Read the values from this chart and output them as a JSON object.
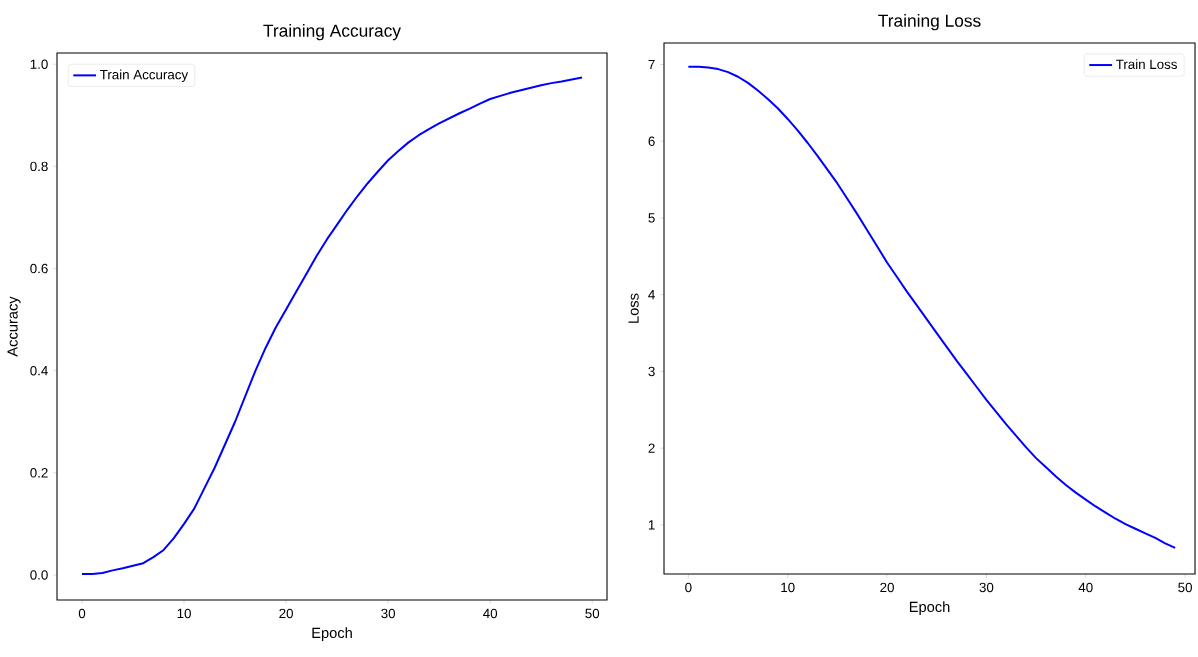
{
  "chart_data": [
    {
      "type": "line",
      "title": "Training Accuracy",
      "xlabel": "Epoch",
      "ylabel": "Accuracy",
      "x": [
        0,
        1,
        2,
        3,
        4,
        5,
        6,
        7,
        8,
        9,
        10,
        11,
        12,
        13,
        14,
        15,
        16,
        17,
        18,
        19,
        20,
        21,
        22,
        23,
        24,
        25,
        26,
        27,
        28,
        29,
        30,
        31,
        32,
        33,
        34,
        35,
        36,
        37,
        38,
        39,
        40,
        41,
        42,
        43,
        44,
        45,
        46,
        47,
        48,
        49
      ],
      "series": [
        {
          "name": "Train Accuracy",
          "color": "#0000ff",
          "values": [
            0.002,
            0.002,
            0.004,
            0.009,
            0.013,
            0.018,
            0.023,
            0.035,
            0.049,
            0.072,
            0.1,
            0.13,
            0.17,
            0.21,
            0.255,
            0.3,
            0.35,
            0.4,
            0.445,
            0.485,
            0.52,
            0.555,
            0.59,
            0.625,
            0.657,
            0.686,
            0.715,
            0.742,
            0.767,
            0.79,
            0.812,
            0.83,
            0.847,
            0.861,
            0.873,
            0.884,
            0.894,
            0.904,
            0.913,
            0.923,
            0.932,
            0.938,
            0.944,
            0.949,
            0.954,
            0.959,
            0.963,
            0.966,
            0.97,
            0.974
          ]
        }
      ],
      "xlim": [
        -2.45,
        51.45
      ],
      "ylim": [
        -0.049,
        1.022
      ],
      "xticks": [
        0,
        10,
        20,
        30,
        40,
        50
      ],
      "yticks": [
        {
          "value": 0,
          "label": "0.0"
        },
        {
          "value": 0.2,
          "label": "0.2"
        },
        {
          "value": 0.4,
          "label": "0.4"
        },
        {
          "value": 0.6,
          "label": "0.6"
        },
        {
          "value": 0.8,
          "label": "0.8"
        },
        {
          "value": 1,
          "label": "1.0"
        }
      ],
      "grid": false,
      "legend": "top left",
      "marker": "none",
      "line_style": "solid"
    },
    {
      "type": "line",
      "title": "Training Loss",
      "xlabel": "Epoch",
      "ylabel": "Loss",
      "x": [
        0,
        1,
        2,
        3,
        4,
        5,
        6,
        7,
        8,
        9,
        10,
        11,
        12,
        13,
        14,
        15,
        16,
        17,
        18,
        19,
        20,
        21,
        22,
        23,
        24,
        25,
        26,
        27,
        28,
        29,
        30,
        31,
        32,
        33,
        34,
        35,
        36,
        37,
        38,
        39,
        40,
        41,
        42,
        43,
        44,
        45,
        46,
        47,
        48,
        49
      ],
      "series": [
        {
          "name": "Train Loss",
          "color": "#0000ff",
          "values": [
            6.97,
            6.97,
            6.96,
            6.94,
            6.9,
            6.84,
            6.76,
            6.66,
            6.55,
            6.43,
            6.29,
            6.14,
            5.98,
            5.81,
            5.63,
            5.45,
            5.25,
            5.05,
            4.84,
            4.63,
            4.42,
            4.23,
            4.04,
            3.86,
            3.68,
            3.5,
            3.32,
            3.14,
            2.97,
            2.8,
            2.63,
            2.47,
            2.31,
            2.16,
            2.01,
            1.87,
            1.75,
            1.63,
            1.52,
            1.42,
            1.33,
            1.24,
            1.16,
            1.08,
            1.01,
            0.95,
            0.89,
            0.83,
            0.76,
            0.7
          ]
        }
      ],
      "xlim": [
        -2.45,
        51
      ],
      "ylim": [
        0.36,
        7.28
      ],
      "xticks": [
        0,
        10,
        20,
        30,
        40,
        50
      ],
      "yticks": [
        1,
        2,
        3,
        4,
        5,
        6,
        7
      ],
      "grid": false,
      "legend": "top right",
      "marker": "none",
      "line_style": "solid"
    }
  ]
}
